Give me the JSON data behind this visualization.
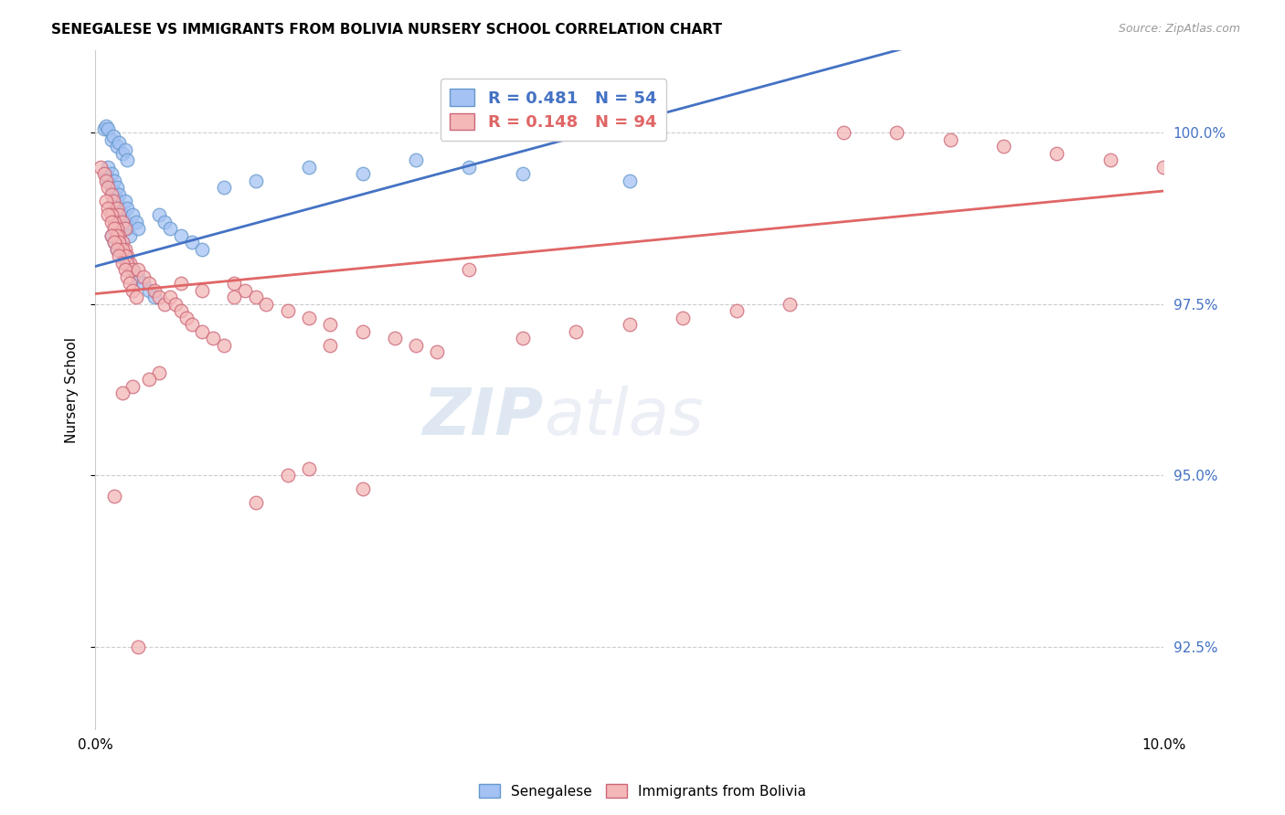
{
  "title": "SENEGALESE VS IMMIGRANTS FROM BOLIVIA NURSERY SCHOOL CORRELATION CHART",
  "source": "Source: ZipAtlas.com",
  "ylabel": "Nursery School",
  "yticks": [
    92.5,
    95.0,
    97.5,
    100.0
  ],
  "ytick_labels": [
    "92.5%",
    "95.0%",
    "97.5%",
    "100.0%"
  ],
  "xlim": [
    0.0,
    10.0
  ],
  "ylim": [
    91.3,
    101.2
  ],
  "blue_R": 0.481,
  "blue_N": 54,
  "pink_R": 0.148,
  "pink_N": 94,
  "blue_color": "#a4c2f4",
  "pink_color": "#f4b8b8",
  "blue_edge_color": "#6699cc",
  "pink_edge_color": "#cc6677",
  "blue_line_color": "#4472c4",
  "pink_line_color": "#e06666",
  "legend_label_blue": "Senegalese",
  "legend_label_pink": "Immigrants from Bolivia",
  "blue_scatter_x": [
    0.08,
    0.1,
    0.12,
    0.15,
    0.17,
    0.2,
    0.22,
    0.25,
    0.28,
    0.3,
    0.1,
    0.12,
    0.15,
    0.18,
    0.2,
    0.22,
    0.25,
    0.28,
    0.3,
    0.32,
    0.12,
    0.15,
    0.18,
    0.2,
    0.22,
    0.28,
    0.3,
    0.35,
    0.38,
    0.4,
    0.15,
    0.18,
    0.2,
    0.25,
    0.3,
    0.35,
    0.4,
    0.45,
    0.5,
    0.55,
    0.6,
    0.65,
    0.7,
    0.8,
    0.9,
    1.0,
    1.2,
    1.5,
    2.0,
    2.5,
    3.0,
    3.5,
    4.0,
    5.0
  ],
  "blue_scatter_y": [
    100.05,
    100.1,
    100.05,
    99.9,
    99.95,
    99.8,
    99.85,
    99.7,
    99.75,
    99.6,
    99.4,
    99.3,
    99.2,
    99.1,
    99.0,
    98.9,
    98.8,
    98.7,
    98.6,
    98.5,
    99.5,
    99.4,
    99.3,
    99.2,
    99.1,
    99.0,
    98.9,
    98.8,
    98.7,
    98.6,
    98.5,
    98.4,
    98.3,
    98.2,
    98.1,
    98.0,
    97.9,
    97.8,
    97.7,
    97.6,
    98.8,
    98.7,
    98.6,
    98.5,
    98.4,
    98.3,
    99.2,
    99.3,
    99.5,
    99.4,
    99.6,
    99.5,
    99.4,
    99.3
  ],
  "pink_scatter_x": [
    0.05,
    0.08,
    0.1,
    0.12,
    0.15,
    0.17,
    0.2,
    0.22,
    0.25,
    0.28,
    0.1,
    0.12,
    0.15,
    0.18,
    0.2,
    0.22,
    0.25,
    0.28,
    0.3,
    0.32,
    0.12,
    0.15,
    0.18,
    0.2,
    0.22,
    0.25,
    0.28,
    0.3,
    0.35,
    0.15,
    0.18,
    0.2,
    0.22,
    0.25,
    0.28,
    0.3,
    0.32,
    0.35,
    0.38,
    0.4,
    0.45,
    0.5,
    0.55,
    0.6,
    0.65,
    0.7,
    0.75,
    0.8,
    0.85,
    0.9,
    1.0,
    1.1,
    1.2,
    1.3,
    1.4,
    1.5,
    1.6,
    1.8,
    2.0,
    2.2,
    2.5,
    2.8,
    3.0,
    3.2,
    3.5,
    4.0,
    4.5,
    5.0,
    5.5,
    6.0,
    6.5,
    7.0,
    7.5,
    8.0,
    8.5,
    9.0,
    9.5,
    10.0,
    1.8,
    2.0,
    1.5,
    2.5,
    2.2,
    1.3,
    1.0,
    0.8,
    0.6,
    0.5,
    0.35,
    0.25,
    0.18,
    0.4
  ],
  "pink_scatter_y": [
    99.5,
    99.4,
    99.3,
    99.2,
    99.1,
    99.0,
    98.9,
    98.8,
    98.7,
    98.6,
    99.0,
    98.9,
    98.8,
    98.7,
    98.6,
    98.5,
    98.4,
    98.3,
    98.2,
    98.1,
    98.8,
    98.7,
    98.6,
    98.5,
    98.4,
    98.3,
    98.2,
    98.1,
    98.0,
    98.5,
    98.4,
    98.3,
    98.2,
    98.1,
    98.0,
    97.9,
    97.8,
    97.7,
    97.6,
    98.0,
    97.9,
    97.8,
    97.7,
    97.6,
    97.5,
    97.6,
    97.5,
    97.4,
    97.3,
    97.2,
    97.1,
    97.0,
    96.9,
    97.8,
    97.7,
    97.6,
    97.5,
    97.4,
    97.3,
    97.2,
    97.1,
    97.0,
    96.9,
    96.8,
    98.0,
    97.0,
    97.1,
    97.2,
    97.3,
    97.4,
    97.5,
    100.0,
    100.0,
    99.9,
    99.8,
    99.7,
    99.6,
    99.5,
    95.0,
    95.1,
    94.6,
    94.8,
    96.9,
    97.6,
    97.7,
    97.8,
    96.5,
    96.4,
    96.3,
    96.2,
    94.7,
    92.5
  ]
}
